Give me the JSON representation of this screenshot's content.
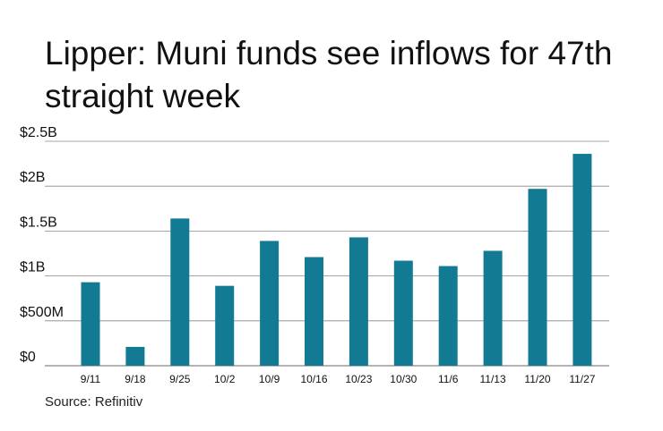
{
  "title": "Lipper: Muni funds see inflows for 47th straight week",
  "source": "Source: Refinitiv",
  "colors": {
    "bar": "#127a93",
    "grid": "#888888",
    "text": "#111111"
  },
  "chart_data": {
    "type": "bar",
    "categories": [
      "9/11",
      "9/18",
      "9/25",
      "10/2",
      "10/9",
      "10/16",
      "10/23",
      "10/30",
      "11/6",
      "11/13",
      "11/20",
      "11/27"
    ],
    "values": [
      0.93,
      0.21,
      1.64,
      0.89,
      1.39,
      1.21,
      1.43,
      1.17,
      1.11,
      1.28,
      1.97,
      2.36
    ],
    "ylim": [
      0,
      2.5
    ],
    "yticks": [
      0,
      0.5,
      1,
      1.5,
      2,
      2.5
    ],
    "ytick_labels": [
      "$0",
      "$500M",
      "$1B",
      "$1.5B",
      "$2B",
      "$2.5B"
    ],
    "unit": "billions of dollars",
    "grid": true,
    "legend": "none"
  }
}
